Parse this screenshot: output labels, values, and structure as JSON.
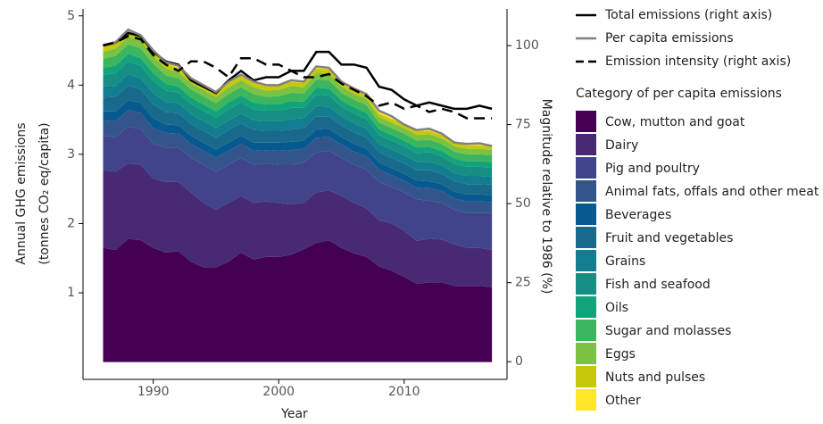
{
  "chart_data": {
    "type": "area",
    "stacked": true,
    "xlabel": "Year",
    "ylabel": [
      "Annual GHG emissions",
      "(tonnes CO₂ eq/capita)"
    ],
    "y2label": "Magnitude relative to 1986 (%)",
    "legend_title": "Category of per capita emissions",
    "x": [
      1986,
      1987,
      1988,
      1989,
      1990,
      1991,
      1992,
      1993,
      1994,
      1995,
      1996,
      1997,
      1998,
      1999,
      2000,
      2001,
      2002,
      2003,
      2004,
      2005,
      2006,
      2007,
      2008,
      2009,
      2010,
      2011,
      2012,
      2013,
      2014,
      2015,
      2016,
      2017
    ],
    "xlim": [
      1984.4,
      2018.2
    ],
    "xticks": [
      1990,
      2000,
      2010
    ],
    "ylim": [
      -0.25,
      5.1
    ],
    "yticks": [
      1,
      2,
      3,
      4,
      5
    ],
    "y2lim": [
      -5.6,
      111.6
    ],
    "y2ticks": [
      0,
      25,
      50,
      75,
      100
    ],
    "series": [
      {
        "name": "Cow, mutton and goat",
        "color": "#440154",
        "values": [
          1.65,
          1.62,
          1.78,
          1.76,
          1.65,
          1.58,
          1.6,
          1.45,
          1.37,
          1.37,
          1.45,
          1.58,
          1.48,
          1.52,
          1.52,
          1.55,
          1.63,
          1.72,
          1.76,
          1.65,
          1.57,
          1.52,
          1.38,
          1.32,
          1.23,
          1.13,
          1.15,
          1.15,
          1.1,
          1.1,
          1.1,
          1.08
        ]
      },
      {
        "name": "Dairy",
        "color": "#472a73",
        "values": [
          1.12,
          1.13,
          1.09,
          1.09,
          1.0,
          1.02,
          1.0,
          1.0,
          0.93,
          0.83,
          0.85,
          0.82,
          0.82,
          0.8,
          0.78,
          0.73,
          0.67,
          0.73,
          0.72,
          0.75,
          0.73,
          0.7,
          0.67,
          0.68,
          0.67,
          0.62,
          0.63,
          0.62,
          0.6,
          0.55,
          0.55,
          0.54
        ]
      },
      {
        "name": "Pig and poultry",
        "color": "#41448a",
        "values": [
          0.5,
          0.5,
          0.53,
          0.52,
          0.5,
          0.5,
          0.5,
          0.5,
          0.55,
          0.55,
          0.55,
          0.55,
          0.55,
          0.55,
          0.55,
          0.57,
          0.58,
          0.58,
          0.57,
          0.55,
          0.55,
          0.56,
          0.55,
          0.53,
          0.55,
          0.6,
          0.55,
          0.53,
          0.5,
          0.5,
          0.5,
          0.53
        ]
      },
      {
        "name": "Animal fats, offals and other meat",
        "color": "#33558c",
        "values": [
          0.22,
          0.23,
          0.24,
          0.23,
          0.23,
          0.21,
          0.2,
          0.2,
          0.2,
          0.2,
          0.2,
          0.2,
          0.2,
          0.19,
          0.2,
          0.21,
          0.2,
          0.21,
          0.2,
          0.19,
          0.19,
          0.19,
          0.18,
          0.17,
          0.17,
          0.17,
          0.18,
          0.17,
          0.16,
          0.17,
          0.17,
          0.16
        ]
      },
      {
        "name": "Beverages",
        "color": "#075a90",
        "values": [
          0.13,
          0.14,
          0.14,
          0.14,
          0.14,
          0.12,
          0.12,
          0.12,
          0.12,
          0.12,
          0.12,
          0.12,
          0.12,
          0.11,
          0.12,
          0.12,
          0.12,
          0.12,
          0.12,
          0.11,
          0.11,
          0.11,
          0.1,
          0.1,
          0.1,
          0.1,
          0.1,
          0.1,
          0.1,
          0.1,
          0.1,
          0.1
        ]
      },
      {
        "name": "Fruit and vegetables",
        "color": "#19698c",
        "values": [
          0.2,
          0.21,
          0.21,
          0.2,
          0.2,
          0.18,
          0.18,
          0.17,
          0.17,
          0.17,
          0.18,
          0.18,
          0.18,
          0.17,
          0.17,
          0.18,
          0.18,
          0.19,
          0.18,
          0.17,
          0.17,
          0.16,
          0.15,
          0.15,
          0.15,
          0.15,
          0.16,
          0.15,
          0.15,
          0.15,
          0.15,
          0.15
        ]
      },
      {
        "name": "Grains",
        "color": "#127d8e",
        "values": [
          0.16,
          0.16,
          0.17,
          0.16,
          0.16,
          0.15,
          0.14,
          0.14,
          0.14,
          0.14,
          0.14,
          0.14,
          0.14,
          0.14,
          0.14,
          0.15,
          0.14,
          0.15,
          0.14,
          0.13,
          0.13,
          0.13,
          0.12,
          0.12,
          0.12,
          0.12,
          0.12,
          0.12,
          0.12,
          0.12,
          0.12,
          0.12
        ]
      },
      {
        "name": "Fish and seafood",
        "color": "#158f83",
        "values": [
          0.17,
          0.18,
          0.18,
          0.18,
          0.18,
          0.16,
          0.15,
          0.15,
          0.15,
          0.15,
          0.16,
          0.16,
          0.16,
          0.15,
          0.15,
          0.16,
          0.15,
          0.16,
          0.16,
          0.14,
          0.14,
          0.14,
          0.13,
          0.13,
          0.13,
          0.13,
          0.14,
          0.13,
          0.13,
          0.13,
          0.13,
          0.13
        ]
      },
      {
        "name": "Oils",
        "color": "#12a37a",
        "values": [
          0.1,
          0.11,
          0.11,
          0.11,
          0.11,
          0.1,
          0.09,
          0.09,
          0.09,
          0.09,
          0.1,
          0.1,
          0.1,
          0.09,
          0.09,
          0.1,
          0.09,
          0.1,
          0.1,
          0.09,
          0.09,
          0.09,
          0.08,
          0.08,
          0.08,
          0.08,
          0.08,
          0.08,
          0.08,
          0.08,
          0.08,
          0.08
        ]
      },
      {
        "name": "Sugar and molasses",
        "color": "#3cb55c",
        "values": [
          0.13,
          0.14,
          0.14,
          0.14,
          0.14,
          0.12,
          0.12,
          0.12,
          0.12,
          0.12,
          0.12,
          0.12,
          0.12,
          0.11,
          0.12,
          0.12,
          0.12,
          0.12,
          0.12,
          0.11,
          0.11,
          0.11,
          0.1,
          0.1,
          0.1,
          0.1,
          0.1,
          0.1,
          0.1,
          0.1,
          0.1,
          0.1
        ]
      },
      {
        "name": "Eggs",
        "color": "#7cc242",
        "values": [
          0.1,
          0.11,
          0.11,
          0.11,
          0.11,
          0.1,
          0.09,
          0.09,
          0.09,
          0.09,
          0.1,
          0.1,
          0.1,
          0.09,
          0.09,
          0.1,
          0.09,
          0.1,
          0.1,
          0.09,
          0.09,
          0.09,
          0.08,
          0.08,
          0.08,
          0.08,
          0.08,
          0.08,
          0.08,
          0.08,
          0.08,
          0.08
        ]
      },
      {
        "name": "Nuts and pulses",
        "color": "#c8c80a",
        "values": [
          0.07,
          0.07,
          0.07,
          0.07,
          0.07,
          0.06,
          0.06,
          0.06,
          0.06,
          0.06,
          0.06,
          0.06,
          0.06,
          0.06,
          0.06,
          0.06,
          0.06,
          0.06,
          0.06,
          0.06,
          0.06,
          0.05,
          0.05,
          0.05,
          0.05,
          0.05,
          0.05,
          0.05,
          0.05,
          0.05,
          0.05,
          0.05
        ]
      },
      {
        "name": "Other",
        "color": "#fde725",
        "values": [
          0.02,
          0.02,
          0.02,
          0.02,
          0.02,
          0.02,
          0.02,
          0.02,
          0.02,
          0.02,
          0.02,
          0.02,
          0.02,
          0.02,
          0.02,
          0.02,
          0.02,
          0.02,
          0.02,
          0.02,
          0.02,
          0.02,
          0.02,
          0.02,
          0.02,
          0.02,
          0.02,
          0.02,
          0.02,
          0.02,
          0.02,
          0.02
        ]
      },
      {
        "name": "Total emissions (right axis)",
        "type": "line",
        "axis": "y2",
        "color": "#000000",
        "dashed": false,
        "values": [
          100,
          101,
          104,
          103,
          98,
          95,
          94,
          89,
          87,
          85,
          89,
          92,
          89,
          90,
          90,
          92,
          92,
          98,
          98,
          94,
          94,
          93,
          87,
          86,
          83,
          81,
          82,
          81,
          80,
          80,
          81,
          80
        ]
      },
      {
        "name": "Per capita emissions",
        "type": "line",
        "color": "#808080",
        "dashed": false,
        "values": [
          4.58,
          4.62,
          4.8,
          4.72,
          4.5,
          4.33,
          4.28,
          4.1,
          4.0,
          3.9,
          4.05,
          4.15,
          4.05,
          4.0,
          4.0,
          4.07,
          4.05,
          4.27,
          4.25,
          4.05,
          3.95,
          3.87,
          3.63,
          3.55,
          3.43,
          3.35,
          3.37,
          3.3,
          3.17,
          3.15,
          3.16,
          3.12
        ]
      },
      {
        "name": "Emission intensity (right axis)",
        "type": "line",
        "axis": "y2",
        "color": "#000000",
        "dashed": true,
        "values": [
          100,
          101,
          103,
          102,
          97,
          94,
          92,
          95,
          95,
          93,
          90,
          96,
          96,
          94,
          94,
          92,
          90,
          90,
          91,
          88,
          86,
          84,
          81,
          82,
          80,
          81,
          79,
          80,
          79,
          77,
          77,
          77
        ]
      }
    ]
  }
}
